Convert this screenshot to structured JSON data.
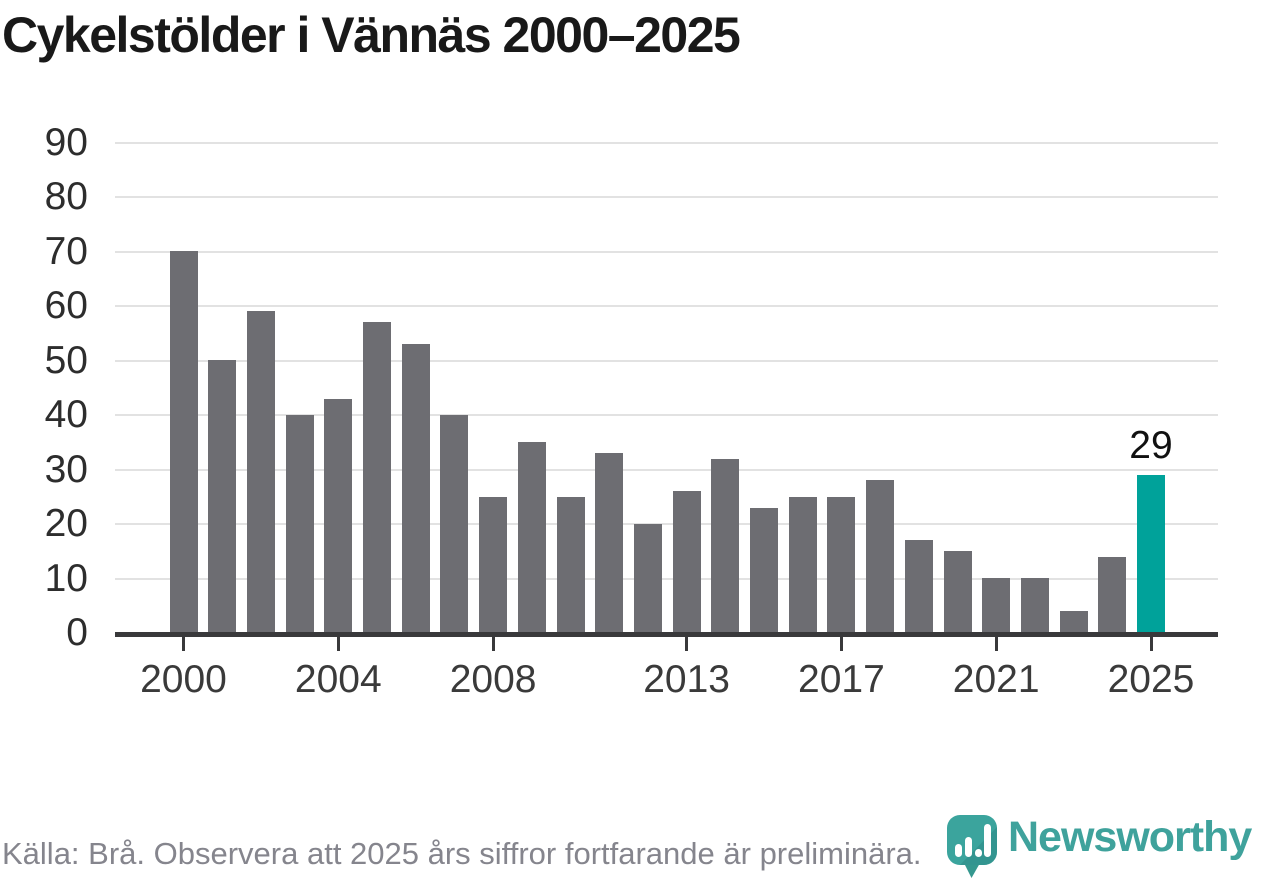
{
  "page": {
    "title": "Cykelstölder i Vännäs 2000–2025"
  },
  "chart_data": {
    "type": "bar",
    "title": "Cykelstölder i Vännäs 2000–2025",
    "x": [
      2000,
      2001,
      2002,
      2003,
      2004,
      2005,
      2006,
      2007,
      2008,
      2009,
      2010,
      2011,
      2012,
      2013,
      2014,
      2015,
      2016,
      2017,
      2018,
      2019,
      2020,
      2021,
      2022,
      2023,
      2024,
      2025
    ],
    "values": [
      70,
      50,
      59,
      40,
      43,
      57,
      53,
      40,
      25,
      35,
      25,
      33,
      20,
      26,
      32,
      23,
      25,
      25,
      28,
      17,
      15,
      10,
      10,
      4,
      14,
      29
    ],
    "highlight_year": 2025,
    "annotation": {
      "year": 2025,
      "label": "29"
    },
    "ylim": [
      0,
      90
    ],
    "y_ticks": [
      0,
      10,
      20,
      30,
      40,
      50,
      60,
      70,
      80,
      90
    ],
    "x_tick_labels": [
      "2000",
      "2004",
      "2008",
      "2013",
      "2017",
      "2021",
      "2025"
    ],
    "grid": "horizontal",
    "legend": "none",
    "colors": {
      "bar": "#6d6d72",
      "highlight": "#00a29a"
    },
    "source_note": "Källa: Brå. Observera att 2025 års siffror fortfarande är preliminära."
  },
  "branding": {
    "wordmark": "Newsworthy",
    "logo_icon": "newsworthy-speech-bubble-chart-icon",
    "brand_color": "#3fa29c"
  }
}
